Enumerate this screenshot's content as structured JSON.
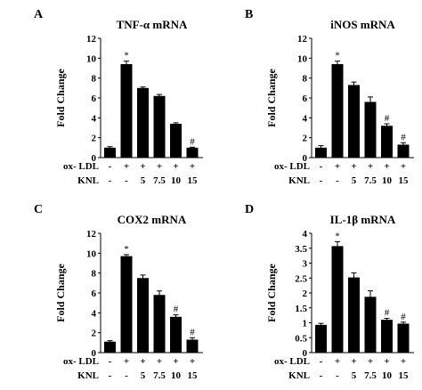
{
  "chart_data": [
    {
      "type": "bar",
      "panel_label": "A",
      "title": "TNF-α  mRNA",
      "ylabel": "Fold Change",
      "ylim": [
        0,
        12
      ],
      "yticks": [
        "0",
        "2",
        "4",
        "6",
        "8",
        "10",
        "12"
      ],
      "values": [
        1.0,
        9.4,
        7.0,
        6.2,
        3.4,
        1.0
      ],
      "errors": [
        0.1,
        0.3,
        0.1,
        0.15,
        0.1,
        0.05
      ],
      "significance": [
        "",
        "*",
        "",
        "",
        "",
        "#"
      ],
      "row_labels": [
        "ox- LDL",
        "KNL"
      ],
      "oxldl": [
        "-",
        "+",
        "+",
        "+",
        "+",
        "+"
      ],
      "knl": [
        "-",
        "-",
        "5",
        "7.5",
        "10",
        "15"
      ]
    },
    {
      "type": "bar",
      "panel_label": "B",
      "title": "iNOS mRNA",
      "ylabel": "Fold Change",
      "ylim": [
        0,
        12
      ],
      "yticks": [
        "0",
        "2",
        "4",
        "6",
        "8",
        "10",
        "12"
      ],
      "values": [
        1.0,
        9.4,
        7.3,
        5.6,
        3.2,
        1.3
      ],
      "errors": [
        0.2,
        0.3,
        0.3,
        0.5,
        0.2,
        0.2
      ],
      "significance": [
        "",
        "*",
        "",
        "",
        "#",
        "#"
      ],
      "row_labels": [
        "ox- LDL",
        "KNL"
      ],
      "oxldl": [
        "-",
        "+",
        "+",
        "+",
        "+",
        "+"
      ],
      "knl": [
        "-",
        "-",
        "5",
        "7.5",
        "10",
        "15"
      ]
    },
    {
      "type": "bar",
      "panel_label": "C",
      "title": "COX2 mRNA",
      "ylabel": "Fold Change",
      "ylim": [
        0,
        12
      ],
      "yticks": [
        "0",
        "2",
        "4",
        "6",
        "8",
        "10",
        "12"
      ],
      "values": [
        1.1,
        9.7,
        7.5,
        5.8,
        3.6,
        1.3
      ],
      "errors": [
        0.1,
        0.15,
        0.3,
        0.4,
        0.2,
        0.2
      ],
      "significance": [
        "",
        "*",
        "",
        "",
        "#",
        "#"
      ],
      "row_labels": [
        "ox- LDL",
        "KNL"
      ],
      "oxldl": [
        "-",
        "+",
        "+",
        "+",
        "+",
        "+"
      ],
      "knl": [
        "-",
        "-",
        "5",
        "7.5",
        "10",
        "15"
      ]
    },
    {
      "type": "bar",
      "panel_label": "D",
      "title": "IL-1β mRNA",
      "ylabel": "Fold Change",
      "ylim": [
        0,
        4
      ],
      "yticks": [
        "0",
        "0.5",
        "1",
        "1.5",
        "2",
        "2.5",
        "3",
        "3.5",
        "4"
      ],
      "values": [
        0.93,
        3.57,
        2.52,
        1.87,
        1.1,
        0.97
      ],
      "errors": [
        0.05,
        0.15,
        0.15,
        0.2,
        0.05,
        0.05
      ],
      "significance": [
        "",
        "*",
        "",
        "",
        "#",
        "#"
      ],
      "row_labels": [
        "ox- LDL",
        "KNL"
      ],
      "oxldl": [
        "-",
        "+",
        "+",
        "+",
        "+",
        "+"
      ],
      "knl": [
        "-",
        "-",
        "5",
        "7.5",
        "10",
        "15"
      ]
    }
  ]
}
